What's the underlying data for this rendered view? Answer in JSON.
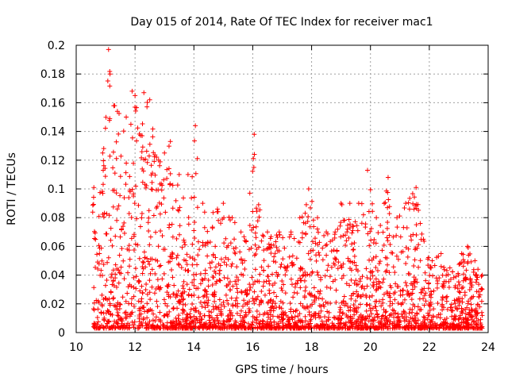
{
  "chart_data": {
    "type": "scatter",
    "title": "Day 015 of 2014, Rate Of TEC Index for receiver mac1",
    "xlabel": "GPS time / hours",
    "ylabel": "ROTI / TECUs",
    "xlim": [
      10,
      24
    ],
    "ylim": [
      0,
      0.2
    ],
    "xticks": [
      10,
      12,
      14,
      16,
      18,
      20,
      22,
      24
    ],
    "xtick_labels": [
      "10",
      "12",
      "14",
      "16",
      "18",
      "20",
      "22",
      "24"
    ],
    "yticks": [
      0,
      0.02,
      0.04,
      0.06,
      0.08,
      0.1,
      0.12,
      0.14,
      0.16,
      0.18,
      0.2
    ],
    "ytick_labels": [
      "0",
      "0.02",
      "0.04",
      "0.06",
      "0.08",
      "0.1",
      "0.12",
      "0.14",
      "0.16",
      "0.18",
      "0.2"
    ],
    "grid": true,
    "marker": "+",
    "color": "#ff0000",
    "series": [
      {
        "name": "mac1",
        "x_range_observed": [
          10.55,
          23.8
        ],
        "envelope": [
          [
            10.6,
            0.101
          ],
          [
            10.9,
            0.125
          ],
          [
            11.1,
            0.197
          ],
          [
            11.15,
            0.18
          ],
          [
            11.4,
            0.154
          ],
          [
            11.7,
            0.15
          ],
          [
            11.9,
            0.168
          ],
          [
            12.0,
            0.165
          ],
          [
            12.3,
            0.167
          ],
          [
            12.5,
            0.162
          ],
          [
            12.8,
            0.12
          ],
          [
            13.0,
            0.125
          ],
          [
            13.2,
            0.133
          ],
          [
            13.5,
            0.11
          ],
          [
            13.8,
            0.11
          ],
          [
            14.05,
            0.144
          ],
          [
            14.3,
            0.09
          ],
          [
            14.8,
            0.086
          ],
          [
            15.0,
            0.09
          ],
          [
            15.3,
            0.08
          ],
          [
            15.6,
            0.07
          ],
          [
            15.9,
            0.097
          ],
          [
            16.05,
            0.138
          ],
          [
            16.2,
            0.089
          ],
          [
            16.5,
            0.07
          ],
          [
            16.9,
            0.07
          ],
          [
            17.3,
            0.07
          ],
          [
            17.6,
            0.08
          ],
          [
            17.9,
            0.1
          ],
          [
            18.2,
            0.08
          ],
          [
            18.5,
            0.07
          ],
          [
            18.8,
            0.07
          ],
          [
            19.0,
            0.09
          ],
          [
            19.3,
            0.09
          ],
          [
            19.6,
            0.09
          ],
          [
            19.9,
            0.113
          ],
          [
            20.2,
            0.08
          ],
          [
            20.6,
            0.108
          ],
          [
            20.9,
            0.08
          ],
          [
            21.2,
            0.09
          ],
          [
            21.55,
            0.101
          ],
          [
            21.8,
            0.065
          ],
          [
            22.1,
            0.05
          ],
          [
            22.4,
            0.055
          ],
          [
            22.7,
            0.045
          ],
          [
            23.1,
            0.055
          ],
          [
            23.3,
            0.06
          ],
          [
            23.55,
            0.05
          ],
          [
            23.8,
            0.04
          ]
        ],
        "floor": 0.003
      }
    ]
  }
}
